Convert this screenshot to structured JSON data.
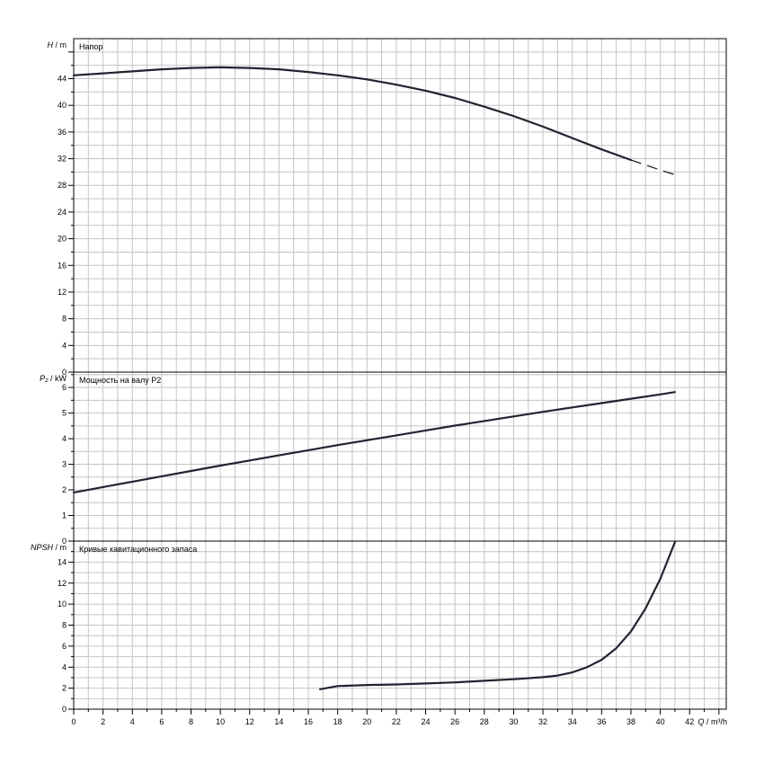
{
  "chart_data": [
    {
      "type": "line",
      "title": "Напор",
      "ylabel_sym": "H",
      "ylabel_unit": "m",
      "xlim": [
        0,
        44.5
      ],
      "ylim": [
        0,
        50
      ],
      "yticks": [
        0,
        4,
        8,
        12,
        16,
        20,
        24,
        28,
        32,
        36,
        40,
        44
      ],
      "series": [
        {
          "x": [
            0,
            2,
            4,
            6,
            8,
            10,
            12,
            14,
            16,
            18,
            20,
            22,
            24,
            26,
            28,
            30,
            32,
            34,
            36,
            38
          ],
          "y": [
            44.5,
            44.8,
            45.1,
            45.4,
            45.6,
            45.7,
            45.6,
            45.4,
            45.0,
            44.5,
            43.9,
            43.1,
            42.2,
            41.1,
            39.8,
            38.4,
            36.8,
            35.1,
            33.4,
            31.8
          ]
        }
      ],
      "extension": {
        "x": [
          38,
          40,
          41
        ],
        "y": [
          31.8,
          30.3,
          29.6
        ]
      }
    },
    {
      "type": "line",
      "title": "Мощность на валу P2",
      "ylabel_sym": "P₂",
      "ylabel_unit": "kW",
      "xlim": [
        0,
        44.5
      ],
      "ylim": [
        0,
        6.6
      ],
      "yticks": [
        0,
        1,
        2,
        3,
        4,
        5,
        6
      ],
      "series": [
        {
          "x": [
            0,
            2,
            4,
            6,
            8,
            10,
            12,
            14,
            16,
            18,
            20,
            22,
            24,
            26,
            28,
            30,
            32,
            34,
            36,
            38,
            40,
            41
          ],
          "y": [
            1.9,
            2.11,
            2.32,
            2.53,
            2.74,
            2.95,
            3.15,
            3.35,
            3.55,
            3.75,
            3.94,
            4.13,
            4.32,
            4.51,
            4.69,
            4.87,
            5.05,
            5.22,
            5.39,
            5.56,
            5.73,
            5.82
          ]
        }
      ]
    },
    {
      "type": "line",
      "title": "Кривые кавитационного запаса",
      "ylabel_sym": "NPSH",
      "ylabel_unit": "m",
      "xlim": [
        0,
        44.5
      ],
      "ylim": [
        0,
        16
      ],
      "yticks": [
        0,
        2,
        4,
        6,
        8,
        10,
        12,
        14
      ],
      "series": [
        {
          "x": [
            16.8,
            18,
            20,
            22,
            24,
            26,
            28,
            30,
            32,
            33,
            34,
            35,
            36,
            37,
            38,
            39,
            40,
            41
          ],
          "y": [
            1.9,
            2.2,
            2.3,
            2.35,
            2.45,
            2.55,
            2.7,
            2.85,
            3.05,
            3.2,
            3.5,
            4.0,
            4.7,
            5.8,
            7.4,
            9.6,
            12.4,
            15.9
          ]
        }
      ]
    }
  ],
  "xaxis": {
    "label_sym": "Q",
    "label_unit": "m³/h",
    "ticks": [
      0,
      2,
      4,
      6,
      8,
      10,
      12,
      14,
      16,
      18,
      20,
      22,
      24,
      26,
      28,
      30,
      32,
      34,
      36,
      38,
      40,
      42
    ]
  }
}
